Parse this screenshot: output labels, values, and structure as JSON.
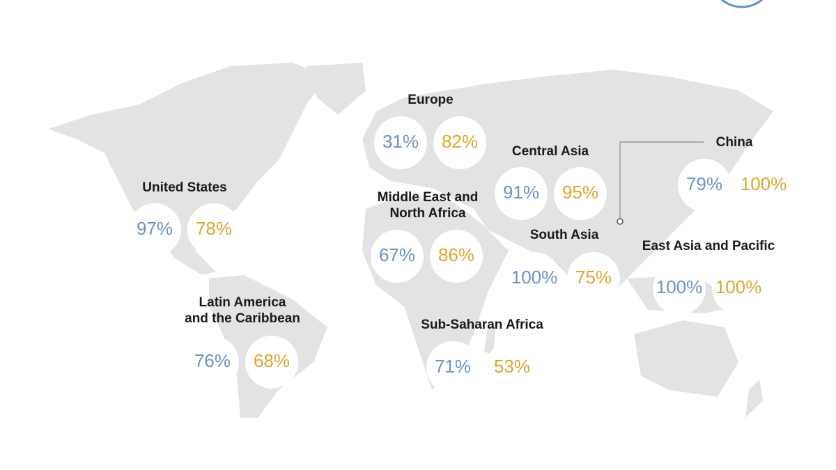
{
  "regions": [
    {
      "label": [
        "United States"
      ],
      "values": [
        "97%",
        "78%"
      ]
    },
    {
      "label": [
        "Latin America",
        "and the Caribbean"
      ],
      "values": [
        "76%",
        "68%"
      ]
    },
    {
      "label": [
        "Europe"
      ],
      "values": [
        "31%",
        "82%"
      ]
    },
    {
      "label": [
        "Middle East and",
        "North Africa"
      ],
      "values": [
        "67%",
        "86%"
      ]
    },
    {
      "label": [
        "Central Asia"
      ],
      "values": [
        "91%",
        "95%"
      ]
    },
    {
      "label": [
        "South Asia"
      ],
      "values": [
        "100%",
        "75%"
      ]
    },
    {
      "label": [
        "China"
      ],
      "values": [
        "79%",
        "100%"
      ]
    },
    {
      "label": [
        "East Asia and Pacific"
      ],
      "values": [
        "100%",
        "100%"
      ]
    },
    {
      "label": [
        "Sub-Saharan Africa"
      ],
      "values": [
        "71%",
        "53%"
      ]
    }
  ]
}
